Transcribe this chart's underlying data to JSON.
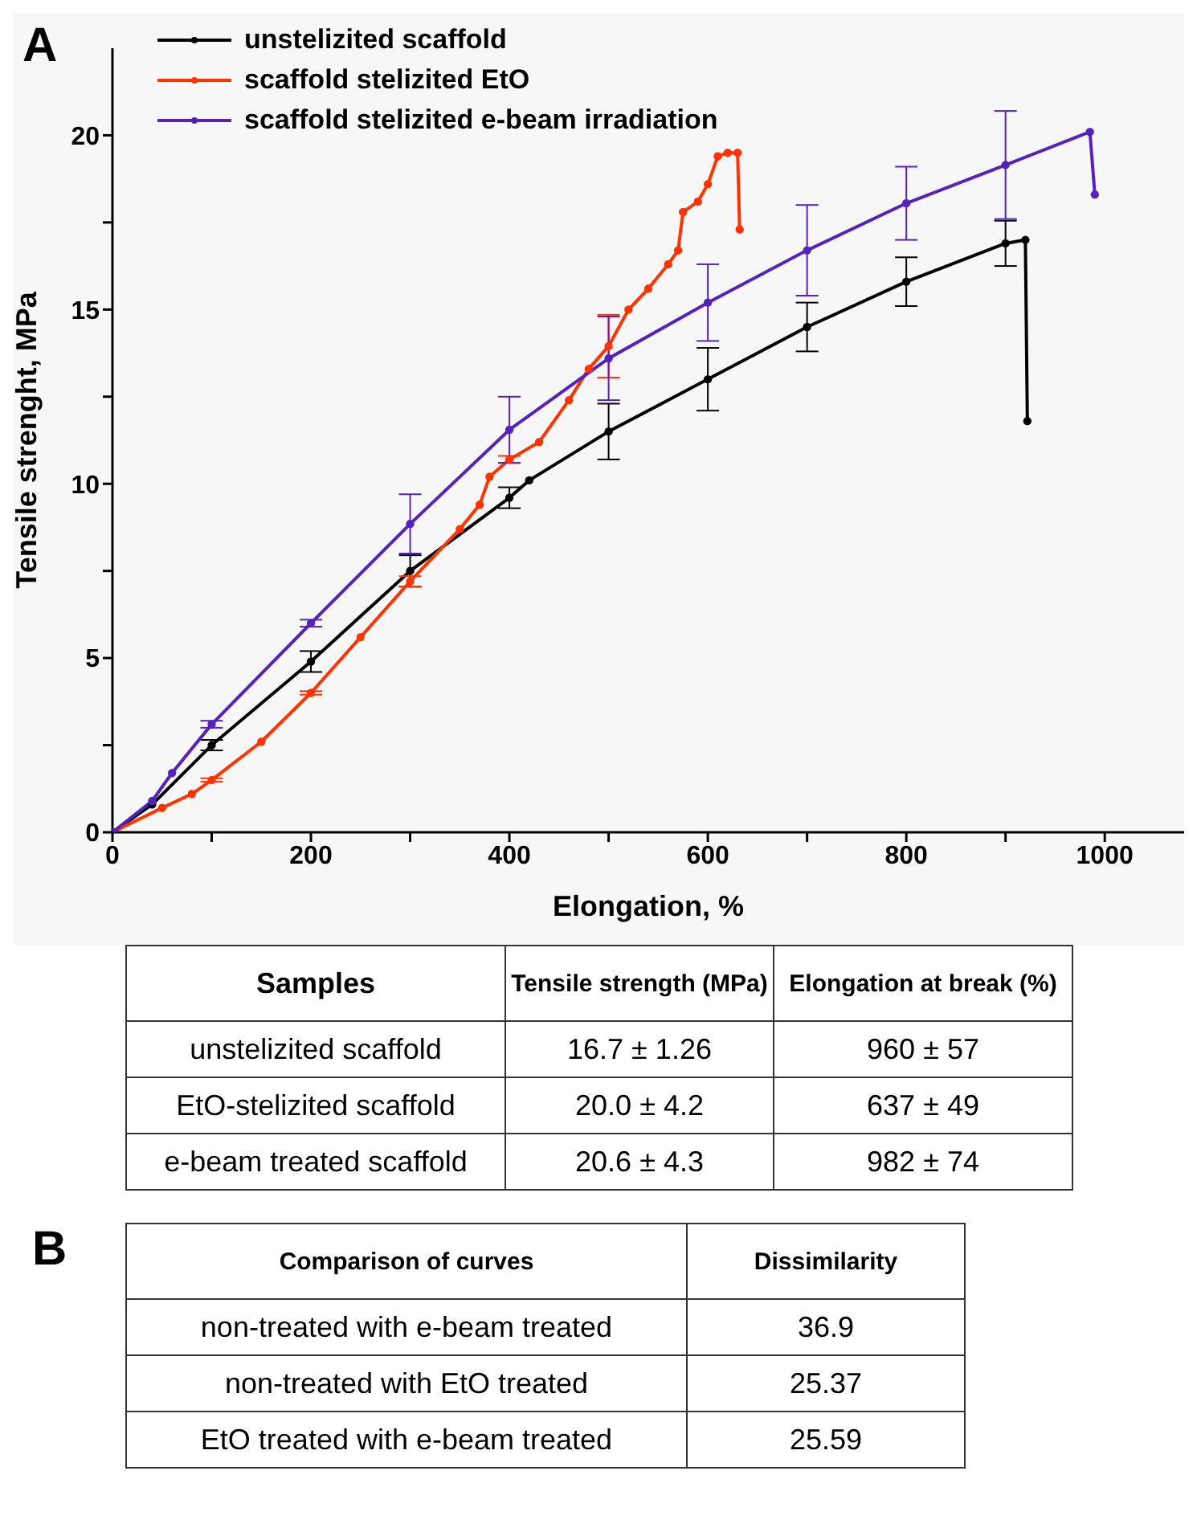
{
  "chart_data": [
    {
      "type": "line",
      "annotations": [
        "A"
      ],
      "xlabel": "Elongation, %",
      "ylabel": "Tensile strenght, MPa",
      "xlim": [
        0,
        1080
      ],
      "ylim": [
        0,
        22.5
      ],
      "xticks": [
        0,
        {
          "value": 100,
          "label": null
        },
        200,
        {
          "value": 300,
          "label": null
        },
        400,
        {
          "value": 500,
          "label": null
        },
        600,
        {
          "value": 700,
          "label": null
        },
        800,
        {
          "value": 900,
          "label": null
        },
        1000
      ],
      "yticks": [
        0,
        {
          "value": 2.5,
          "label": null
        },
        5,
        {
          "value": 7.5,
          "label": null
        },
        10,
        {
          "value": 12.5,
          "label": null
        },
        15,
        {
          "value": 17.5,
          "label": null
        },
        20
      ],
      "legend": "top left",
      "marker": "circle",
      "line_style": "solid",
      "series": [
        {
          "name": "unstelizited scaffold",
          "color": "#000000",
          "x": [
            0,
            40,
            100,
            200,
            300,
            400,
            420,
            500,
            600,
            700,
            800,
            900,
            920,
            922
          ],
          "values": [
            0,
            0.8,
            2.5,
            4.9,
            7.5,
            9.6,
            10.1,
            11.5,
            13.0,
            14.5,
            15.8,
            16.9,
            17.0,
            11.8
          ],
          "errors": [
            null,
            null,
            0.15,
            0.3,
            0.45,
            0.3,
            null,
            0.8,
            0.9,
            0.7,
            0.7,
            0.65,
            null,
            null
          ]
        },
        {
          "name": "scaffold stelizited EtO",
          "color": "#ff3300",
          "x": [
            0,
            50,
            80,
            100,
            150,
            200,
            250,
            300,
            350,
            370,
            380,
            400,
            430,
            460,
            480,
            500,
            520,
            540,
            560,
            570,
            575,
            590,
            600,
            610,
            620,
            630,
            632
          ],
          "values": [
            0,
            0.7,
            1.1,
            1.5,
            2.6,
            4.0,
            5.6,
            7.2,
            8.7,
            9.4,
            10.2,
            10.7,
            11.2,
            12.4,
            13.3,
            13.95,
            15.0,
            15.6,
            16.3,
            16.7,
            17.8,
            18.1,
            18.6,
            19.4,
            19.5,
            19.5,
            17.3
          ],
          "errors": [
            null,
            null,
            null,
            0.05,
            null,
            0.05,
            null,
            0.15,
            null,
            null,
            null,
            0.1,
            null,
            null,
            null,
            0.9,
            null,
            null,
            null,
            null,
            null,
            null,
            null,
            null,
            null,
            null,
            null
          ]
        },
        {
          "name": "scaffold stelizited e-beam irradiation",
          "color": "#5522bb",
          "x": [
            0,
            40,
            60,
            100,
            200,
            300,
            400,
            500,
            600,
            700,
            800,
            900,
            985,
            990
          ],
          "values": [
            0,
            0.9,
            1.7,
            3.1,
            6.0,
            8.85,
            11.55,
            13.6,
            15.2,
            16.7,
            18.05,
            19.15,
            20.1,
            18.3
          ],
          "errors": [
            null,
            null,
            null,
            0.1,
            0.1,
            0.85,
            0.95,
            1.2,
            1.1,
            1.3,
            1.05,
            1.55,
            null,
            null
          ]
        }
      ]
    },
    {
      "type": "other",
      "categories": [
        "Samples",
        "Tensile strength (MPa)",
        "Elongation at break (%)"
      ],
      "y_categories": [
        "unstelizited scaffold",
        "EtO-stelizited scaffold",
        "e-beam treated scaffold"
      ],
      "cell_labels": [
        [
          "16.7 ± 1.26",
          "960 ± 57"
        ],
        [
          "20.0 ± 4.2",
          "637 ± 49"
        ],
        [
          "20.6 ± 4.3",
          "982 ± 74"
        ]
      ]
    },
    {
      "type": "other",
      "annotations": [
        "B"
      ],
      "categories": [
        "Comparison of curves",
        "Dissimilarity"
      ],
      "y_categories": [
        "non-treated with e-beam treated",
        "non-treated with EtO treated",
        "EtO treated with e-beam treated"
      ],
      "cell_labels": [
        [
          "36.9"
        ],
        [
          "25.37"
        ],
        [
          "25.59"
        ]
      ]
    }
  ]
}
